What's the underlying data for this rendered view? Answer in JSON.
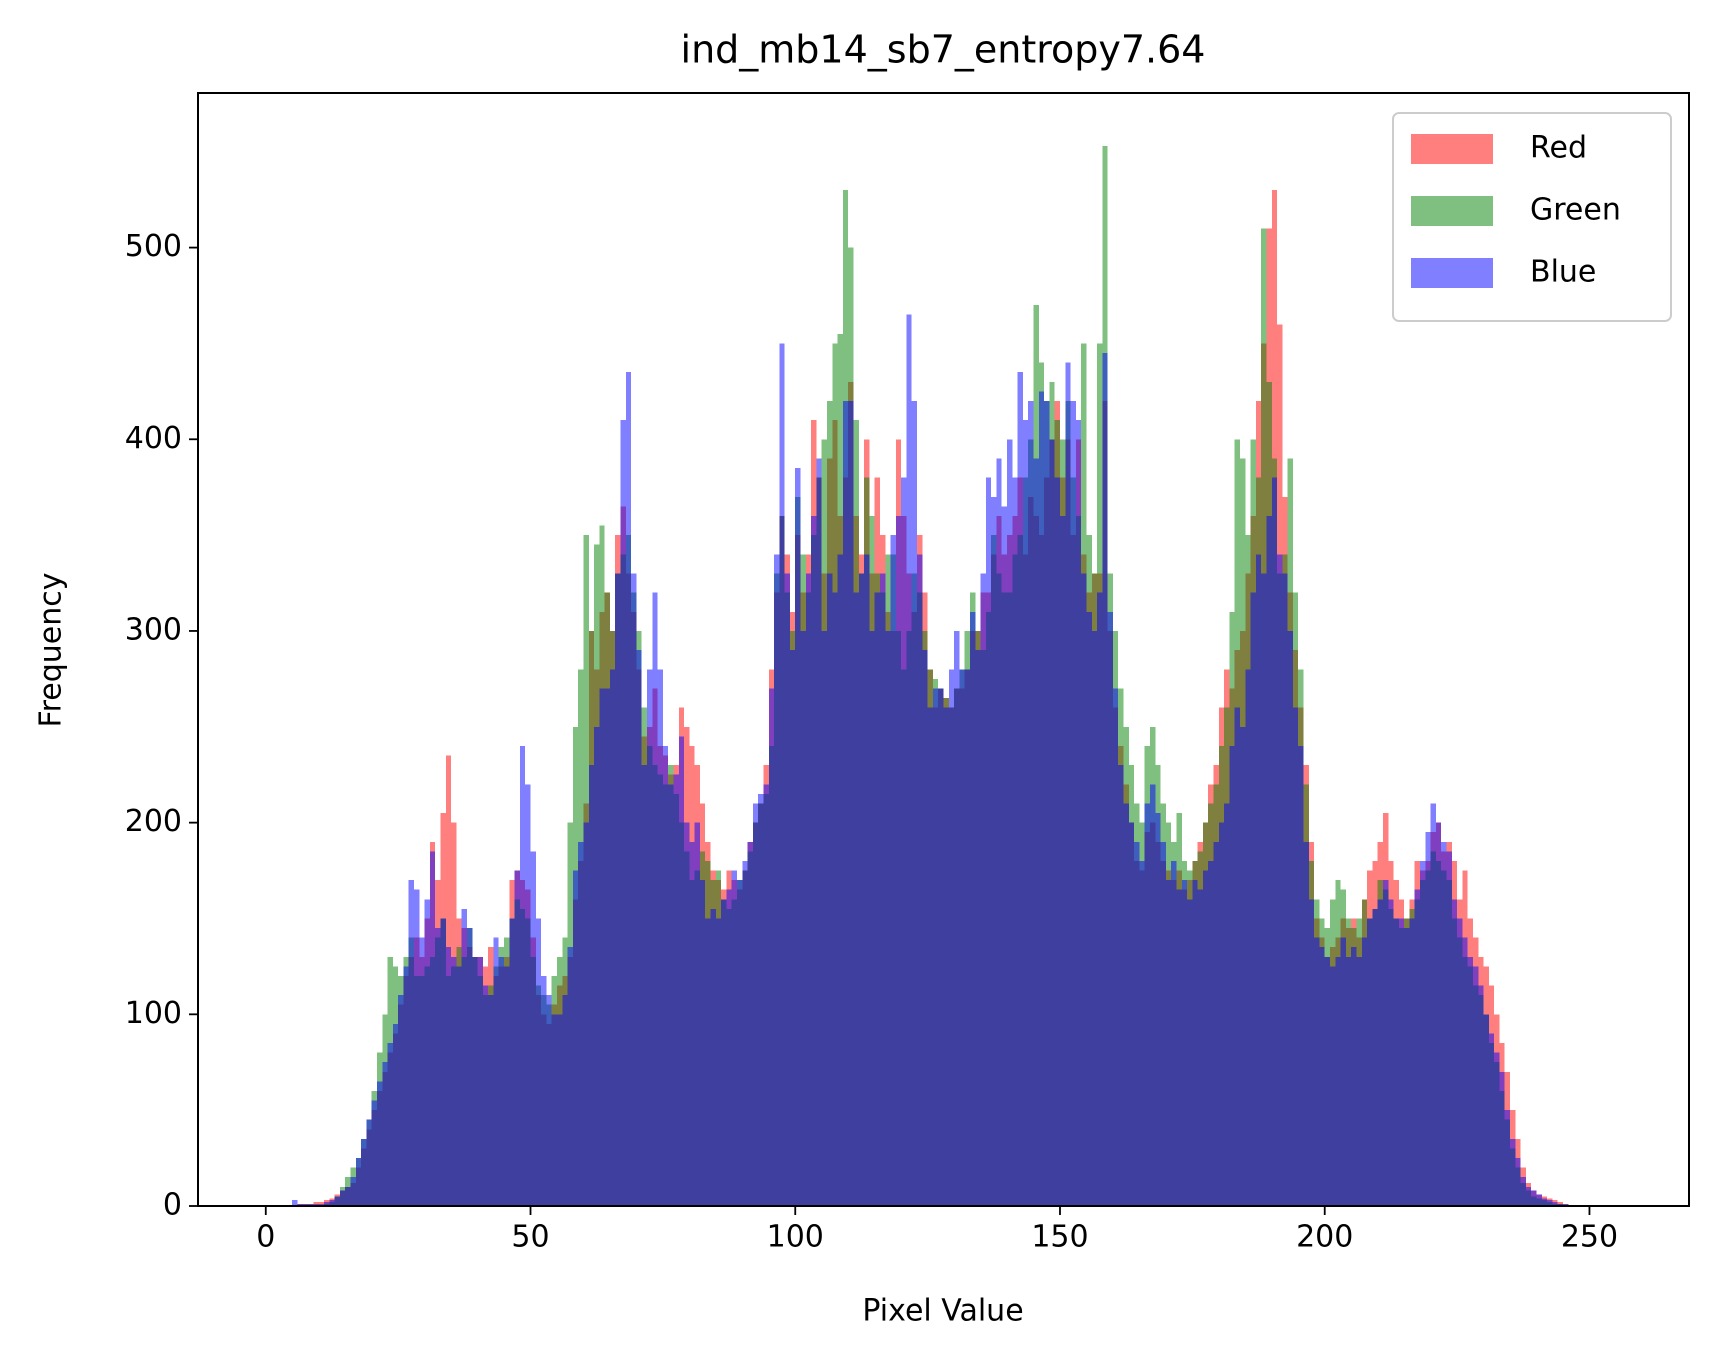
{
  "chart_data": {
    "type": "histogram",
    "title": "ind_mb14_sb7_entropy7.64",
    "x_label": "Pixel Value",
    "y_label": "Frequency",
    "bins": [
      0,
      1,
      2,
      3,
      4,
      5,
      6,
      7,
      8,
      9,
      10,
      11,
      12,
      13,
      14,
      15,
      16,
      17,
      18,
      19,
      20,
      21,
      22,
      23,
      24,
      25,
      26,
      27,
      28,
      29,
      30,
      31,
      32,
      33,
      34,
      35,
      36,
      37,
      38,
      39,
      40,
      41,
      42,
      43,
      44,
      45,
      46,
      47,
      48,
      49,
      50,
      51,
      52,
      53,
      54,
      55,
      56,
      57,
      58,
      59,
      60,
      61,
      62,
      63,
      64,
      65,
      66,
      67,
      68,
      69,
      70,
      71,
      72,
      73,
      74,
      75,
      76,
      77,
      78,
      79,
      80,
      81,
      82,
      83,
      84,
      85,
      86,
      87,
      88,
      89,
      90,
      91,
      92,
      93,
      94,
      95,
      96,
      97,
      98,
      99,
      100,
      101,
      102,
      103,
      104,
      105,
      106,
      107,
      108,
      109,
      110,
      111,
      112,
      113,
      114,
      115,
      116,
      117,
      118,
      119,
      120,
      121,
      122,
      123,
      124,
      125,
      126,
      127,
      128,
      129,
      130,
      131,
      132,
      133,
      134,
      135,
      136,
      137,
      138,
      139,
      140,
      141,
      142,
      143,
      144,
      145,
      146,
      147,
      148,
      149,
      150,
      151,
      152,
      153,
      154,
      155,
      156,
      157,
      158,
      159,
      160,
      161,
      162,
      163,
      164,
      165,
      166,
      167,
      168,
      169,
      170,
      171,
      172,
      173,
      174,
      175,
      176,
      177,
      178,
      179,
      180,
      181,
      182,
      183,
      184,
      185,
      186,
      187,
      188,
      189,
      190,
      191,
      192,
      193,
      194,
      195,
      196,
      197,
      198,
      199,
      200,
      201,
      202,
      203,
      204,
      205,
      206,
      207,
      208,
      209,
      210,
      211,
      212,
      213,
      214,
      215,
      216,
      217,
      218,
      219,
      220,
      221,
      222,
      223,
      224,
      225,
      226,
      227,
      228,
      229,
      230,
      231,
      232,
      233,
      234,
      235,
      236,
      237,
      238,
      239,
      240,
      241,
      242,
      243,
      244,
      245,
      246,
      247,
      248,
      249,
      250,
      251,
      252,
      253,
      254,
      255,
      256
    ],
    "series": [
      {
        "name": "Red",
        "color": "#ff0000",
        "values": [
          0,
          0,
          0,
          0,
          0,
          0,
          1,
          1,
          1,
          2,
          2,
          3,
          4,
          6,
          8,
          10,
          12,
          20,
          30,
          40,
          50,
          60,
          70,
          80,
          90,
          105,
          120,
          130,
          140,
          130,
          150,
          190,
          170,
          205,
          235,
          200,
          150,
          145,
          135,
          130,
          130,
          125,
          135,
          120,
          125,
          130,
          170,
          175,
          170,
          165,
          140,
          110,
          100,
          95,
          105,
          115,
          120,
          130,
          160,
          180,
          210,
          300,
          280,
          310,
          320,
          300,
          350,
          365,
          330,
          310,
          280,
          245,
          250,
          270,
          240,
          235,
          225,
          230,
          260,
          250,
          240,
          230,
          210,
          190,
          175,
          170,
          165,
          175,
          170,
          165,
          175,
          190,
          200,
          210,
          230,
          280,
          320,
          360,
          340,
          310,
          350,
          320,
          340,
          410,
          380,
          330,
          390,
          410,
          360,
          380,
          430,
          360,
          340,
          400,
          330,
          380,
          350,
          310,
          300,
          400,
          360,
          330,
          310,
          350,
          320,
          280,
          260,
          270,
          265,
          260,
          270,
          270,
          280,
          300,
          300,
          320,
          320,
          340,
          360,
          340,
          350,
          360,
          380,
          340,
          370,
          360,
          350,
          380,
          400,
          420,
          380,
          400,
          350,
          400,
          340,
          320,
          330,
          330,
          420,
          300,
          260,
          240,
          220,
          200,
          180,
          175,
          195,
          200,
          190,
          180,
          175,
          170,
          175,
          165,
          170,
          180,
          190,
          200,
          220,
          230,
          260,
          280,
          270,
          290,
          300,
          330,
          360,
          420,
          450,
          510,
          530,
          460,
          370,
          320,
          290,
          260,
          230,
          190,
          150,
          140,
          130,
          135,
          140,
          150,
          145,
          150,
          140,
          160,
          175,
          180,
          190,
          205,
          180,
          170,
          160,
          150,
          160,
          180,
          175,
          180,
          195,
          200,
          185,
          190,
          180,
          160,
          175,
          150,
          140,
          130,
          125,
          115,
          100,
          85,
          70,
          50,
          35,
          20,
          12,
          8,
          6,
          5,
          4,
          3,
          2,
          1,
          0,
          0,
          0,
          0,
          0,
          0,
          0,
          0,
          0,
          0
        ]
      },
      {
        "name": "Green",
        "color": "#008000",
        "values": [
          0,
          0,
          0,
          0,
          0,
          0,
          0,
          0,
          0,
          0,
          0,
          1,
          2,
          5,
          10,
          15,
          20,
          25,
          35,
          45,
          60,
          80,
          100,
          130,
          125,
          120,
          130,
          140,
          120,
          120,
          125,
          130,
          140,
          150,
          120,
          125,
          135,
          130,
          145,
          130,
          120,
          110,
          115,
          125,
          135,
          140,
          150,
          160,
          155,
          150,
          130,
          115,
          110,
          105,
          120,
          130,
          140,
          200,
          250,
          280,
          350,
          300,
          345,
          355,
          320,
          300,
          330,
          340,
          350,
          320,
          300,
          260,
          240,
          230,
          225,
          220,
          230,
          215,
          200,
          185,
          170,
          175,
          185,
          180,
          170,
          175,
          160,
          155,
          160,
          170,
          175,
          185,
          200,
          210,
          215,
          240,
          330,
          360,
          320,
          300,
          370,
          340,
          320,
          350,
          380,
          400,
          420,
          450,
          455,
          530,
          500,
          410,
          330,
          380,
          360,
          330,
          320,
          340,
          340,
          300,
          280,
          300,
          330,
          320,
          300,
          280,
          275,
          270,
          265,
          260,
          270,
          280,
          300,
          320,
          300,
          290,
          310,
          350,
          330,
          320,
          320,
          340,
          350,
          380,
          400,
          470,
          440,
          420,
          430,
          410,
          400,
          420,
          380,
          360,
          450,
          350,
          330,
          450,
          553,
          330,
          300,
          270,
          250,
          230,
          210,
          200,
          240,
          250,
          230,
          210,
          200,
          190,
          205,
          180,
          175,
          180,
          185,
          200,
          210,
          220,
          240,
          260,
          310,
          400,
          390,
          350,
          400,
          380,
          510,
          430,
          390,
          330,
          340,
          390,
          320,
          280,
          220,
          180,
          160,
          150,
          145,
          160,
          170,
          165,
          150,
          145,
          150,
          160,
          150,
          155,
          170,
          165,
          155,
          150,
          145,
          150,
          155,
          160,
          170,
          175,
          185,
          180,
          175,
          170,
          150,
          140,
          130,
          125,
          115,
          110,
          100,
          85,
          75,
          60,
          45,
          30,
          20,
          12,
          8,
          5,
          4,
          3,
          2,
          1,
          1,
          0,
          0,
          0,
          0,
          0,
          0,
          0,
          0,
          0,
          0,
          0
        ]
      },
      {
        "name": "Blue",
        "color": "#0000ff",
        "values": [
          0,
          0,
          0,
          0,
          0,
          3,
          1,
          1,
          1,
          1,
          1,
          2,
          3,
          5,
          8,
          10,
          15,
          25,
          35,
          45,
          55,
          65,
          75,
          85,
          95,
          110,
          125,
          170,
          165,
          140,
          160,
          185,
          145,
          150,
          135,
          130,
          125,
          155,
          145,
          130,
          130,
          115,
          110,
          140,
          130,
          125,
          150,
          175,
          240,
          220,
          185,
          150,
          120,
          110,
          100,
          100,
          110,
          135,
          175,
          190,
          200,
          230,
          250,
          270,
          270,
          280,
          330,
          410,
          435,
          330,
          290,
          230,
          280,
          320,
          280,
          240,
          220,
          225,
          245,
          200,
          190,
          200,
          170,
          150,
          155,
          150,
          160,
          165,
          175,
          170,
          180,
          190,
          210,
          215,
          220,
          270,
          340,
          450,
          330,
          290,
          385,
          300,
          330,
          360,
          390,
          300,
          330,
          320,
          340,
          420,
          420,
          320,
          330,
          340,
          300,
          320,
          330,
          300,
          350,
          360,
          380,
          465,
          420,
          340,
          290,
          260,
          270,
          270,
          260,
          280,
          300,
          280,
          280,
          310,
          290,
          330,
          380,
          370,
          390,
          365,
          400,
          380,
          435,
          410,
          420,
          390,
          425,
          420,
          400,
          380,
          360,
          440,
          420,
          410,
          330,
          310,
          300,
          320,
          445,
          310,
          270,
          230,
          210,
          200,
          190,
          180,
          210,
          220,
          205,
          190,
          170,
          180,
          165,
          170,
          160,
          170,
          165,
          175,
          180,
          190,
          200,
          210,
          240,
          260,
          250,
          280,
          320,
          340,
          330,
          360,
          380,
          340,
          330,
          300,
          260,
          240,
          190,
          160,
          140,
          135,
          130,
          125,
          130,
          140,
          130,
          135,
          130,
          140,
          150,
          155,
          160,
          170,
          160,
          150,
          150,
          145,
          150,
          165,
          180,
          195,
          210,
          200,
          190,
          185,
          160,
          150,
          140,
          130,
          125,
          115,
          100,
          90,
          80,
          70,
          50,
          35,
          25,
          15,
          10,
          8,
          6,
          4,
          3,
          2,
          1,
          1,
          0,
          0,
          0,
          0,
          0,
          0,
          0,
          0,
          0,
          0
        ]
      }
    ],
    "alpha": 0.5,
    "xlim": [
      -12.8,
      268.8
    ],
    "ylim": [
      0,
      580.65
    ],
    "xticks": [
      0,
      50,
      100,
      150,
      200,
      250
    ],
    "yticks": [
      0,
      100,
      200,
      300,
      400,
      500
    ],
    "grid": false,
    "legend": "upper right"
  }
}
